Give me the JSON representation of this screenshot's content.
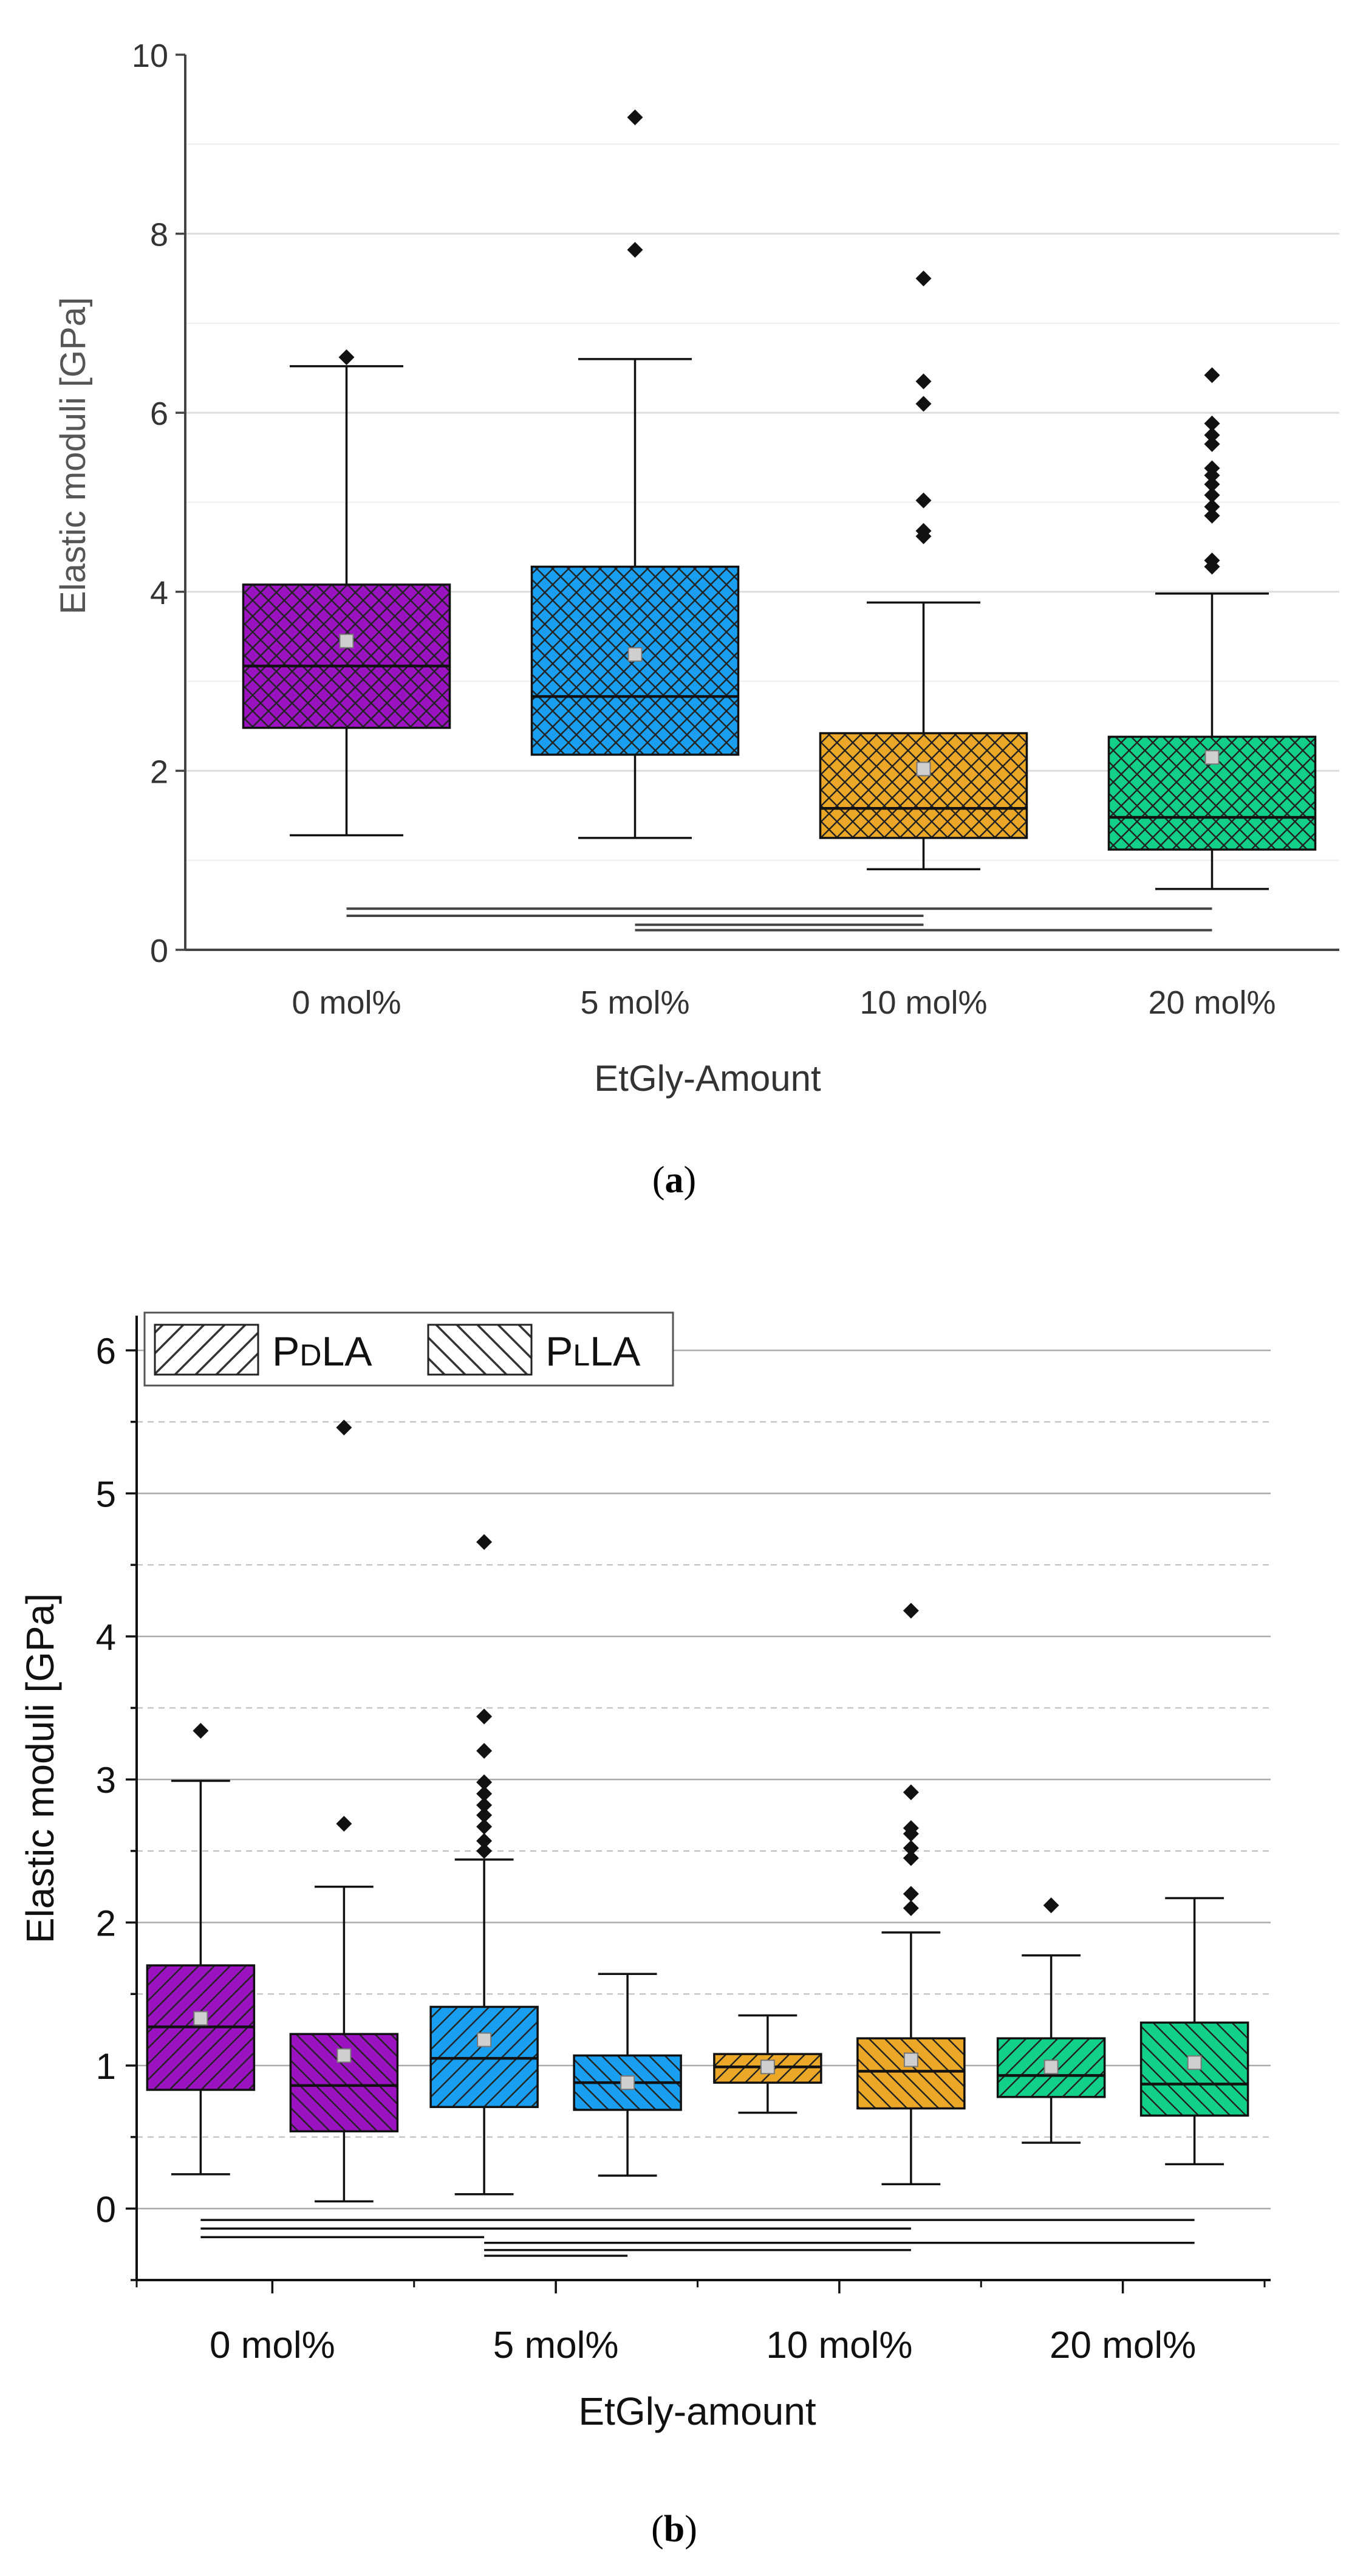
{
  "chart_data": [
    {
      "type": "box",
      "panel": "a",
      "panel_label": "(a)",
      "panel_letter": "a",
      "xlabel": "EtGly-Amount",
      "ylabel": "Elastic moduli  [GPa]",
      "ylim": [
        0,
        10
      ],
      "yticks": [
        "0",
        "2",
        "4",
        "6",
        "8",
        "10"
      ],
      "grid": true,
      "pattern": "crosshatch",
      "categories": [
        "0 mol%",
        "5 mol%",
        "10 mol%",
        "20 mol%"
      ],
      "boxes": [
        {
          "category": "0 mol%",
          "color": "#9b13c0",
          "whisker_low": 1.28,
          "q1": 2.48,
          "median": 3.17,
          "q3": 4.08,
          "whisker_high": 6.52,
          "mean": 3.45,
          "outliers": [
            6.62
          ]
        },
        {
          "category": "5 mol%",
          "color": "#1a9ff0",
          "whisker_low": 1.25,
          "q1": 2.18,
          "median": 2.83,
          "q3": 4.28,
          "whisker_high": 6.6,
          "mean": 3.3,
          "outliers": [
            7.82,
            9.3
          ]
        },
        {
          "category": "10 mol%",
          "color": "#eba727",
          "whisker_low": 0.9,
          "q1": 1.25,
          "median": 1.58,
          "q3": 2.42,
          "whisker_high": 3.88,
          "mean": 2.02,
          "outliers": [
            4.62,
            4.68,
            5.02,
            6.1,
            6.35,
            7.5
          ]
        },
        {
          "category": "20 mol%",
          "color": "#12cf8a",
          "whisker_low": 0.68,
          "q1": 1.12,
          "median": 1.48,
          "q3": 2.38,
          "whisker_high": 3.98,
          "mean": 2.15,
          "outliers": [
            4.28,
            4.35,
            4.85,
            4.95,
            5.08,
            5.2,
            5.3,
            5.38,
            5.65,
            5.75,
            5.88,
            6.42
          ]
        }
      ],
      "significance_bars": [
        {
          "from": "0 mol%",
          "to": "10 mol%",
          "y": 0.38
        },
        {
          "from": "0 mol%",
          "to": "20 mol%",
          "y": 0.46
        },
        {
          "from": "5 mol%",
          "to": "10 mol%",
          "y": 0.28
        },
        {
          "from": "5 mol%",
          "to": "20 mol%",
          "y": 0.22
        }
      ]
    },
    {
      "type": "box",
      "panel": "b",
      "panel_label": "(b)",
      "panel_letter": "b",
      "xlabel": "EtGly-amount",
      "ylabel": "Elastic moduli [GPa]",
      "ylim": [
        -0.5,
        6.2
      ],
      "yticks": [
        "0",
        "1",
        "2",
        "3",
        "4",
        "5",
        "6"
      ],
      "grid": true,
      "legend_position": "top-left",
      "legend": [
        {
          "prefix": "P",
          "small": "D",
          "suffix": "LA",
          "pattern": "hatch-forward"
        },
        {
          "prefix": "P",
          "small": "L",
          "suffix": "LA",
          "pattern": "hatch-backward"
        }
      ],
      "categories": [
        "0 mol%",
        "5 mol%",
        "10 mol%",
        "20 mol%"
      ],
      "boxes": [
        {
          "category": "0 mol%",
          "series": "PDLA",
          "color": "#9b13c0",
          "whisker_low": 0.24,
          "q1": 0.83,
          "median": 1.27,
          "q3": 1.7,
          "whisker_high": 2.99,
          "mean": 1.33,
          "outliers": [
            3.34
          ]
        },
        {
          "category": "0 mol%",
          "series": "PLLA",
          "color": "#9b13c0",
          "whisker_low": 0.05,
          "q1": 0.54,
          "median": 0.86,
          "q3": 1.22,
          "whisker_high": 2.25,
          "mean": 1.07,
          "outliers": [
            2.69,
            5.46
          ]
        },
        {
          "category": "5 mol%",
          "series": "PDLA",
          "color": "#1a9ff0",
          "whisker_low": 0.1,
          "q1": 0.71,
          "median": 1.05,
          "q3": 1.41,
          "whisker_high": 2.44,
          "mean": 1.18,
          "outliers": [
            2.5,
            2.57,
            2.67,
            2.75,
            2.82,
            2.9,
            2.98,
            3.2,
            3.44,
            4.66
          ]
        },
        {
          "category": "5 mol%",
          "series": "PLLA",
          "color": "#1a9ff0",
          "whisker_low": 0.23,
          "q1": 0.69,
          "median": 0.88,
          "q3": 1.07,
          "whisker_high": 1.64,
          "mean": 0.88,
          "outliers": []
        },
        {
          "category": "10 mol%",
          "series": "PDLA",
          "color": "#eba727",
          "whisker_low": 0.67,
          "q1": 0.88,
          "median": 0.99,
          "q3": 1.08,
          "whisker_high": 1.35,
          "mean": 0.99,
          "outliers": []
        },
        {
          "category": "10 mol%",
          "series": "PLLA",
          "color": "#eba727",
          "whisker_low": 0.17,
          "q1": 0.7,
          "median": 0.96,
          "q3": 1.19,
          "whisker_high": 1.93,
          "mean": 1.04,
          "outliers": [
            2.1,
            2.2,
            2.45,
            2.52,
            2.62,
            2.66,
            2.91,
            4.18
          ]
        },
        {
          "category": "20 mol%",
          "series": "PDLA",
          "color": "#12cf8a",
          "whisker_low": 0.46,
          "q1": 0.78,
          "median": 0.93,
          "q3": 1.19,
          "whisker_high": 1.77,
          "mean": 0.99,
          "outliers": [
            2.12
          ]
        },
        {
          "category": "20 mol%",
          "series": "PLLA",
          "color": "#12cf8a",
          "whisker_low": 0.31,
          "q1": 0.65,
          "median": 0.87,
          "q3": 1.3,
          "whisker_high": 2.17,
          "mean": 1.02,
          "outliers": []
        }
      ],
      "significance_bars": [
        {
          "from": "0 mol% PDLA",
          "to": "5 mol% PDLA",
          "y": -0.2
        },
        {
          "from": "0 mol% PDLA",
          "to": "10 mol% PLLA",
          "y": -0.14
        },
        {
          "from": "0 mol% PDLA",
          "to": "20 mol% PLLA",
          "y": -0.08
        },
        {
          "from": "5 mol% PDLA",
          "to": "5 mol% PLLA",
          "y": -0.33
        },
        {
          "from": "5 mol% PDLA",
          "to": "10 mol% PLLA",
          "y": -0.29
        },
        {
          "from": "5 mol% PDLA",
          "to": "20 mol% PLLA",
          "y": -0.24
        }
      ]
    }
  ]
}
